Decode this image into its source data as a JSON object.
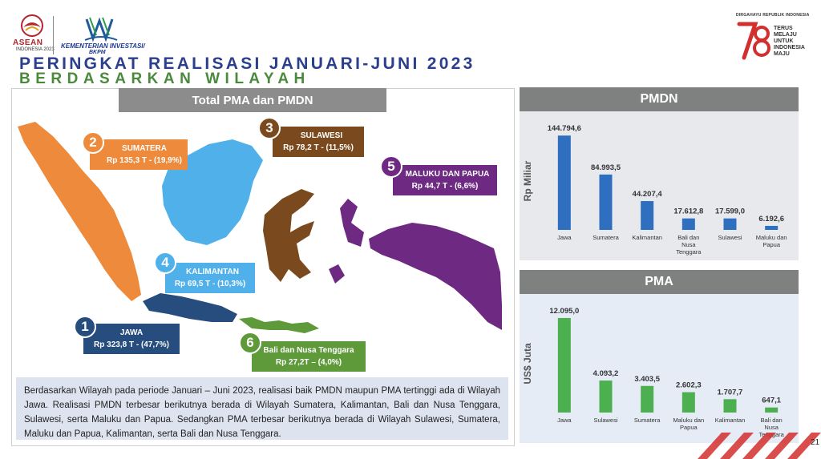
{
  "header": {
    "asean_label": "ASEAN",
    "asean_sub": "INDONESIA 2023",
    "ministry_line1": "KEMENTERIAN INVESTASI/",
    "ministry_line2": "BKPM",
    "title_line1": "PERINGKAT REALISASI JANUARI-JUNI 2023",
    "title_line2": "BERDASARKAN WILAYAH",
    "anniversary_label": "DIRGAHAYU REPUBLIK INDONESIA",
    "anniversary_tagline": "TERUS MELAJU UNTUK INDONESIA MAJU"
  },
  "map_panel": {
    "title": "Total PMA dan PMDN",
    "regions": [
      {
        "rank": "1",
        "name": "JAWA",
        "value": "Rp 323,8 T - (47,7%)",
        "color": "#264d7e"
      },
      {
        "rank": "2",
        "name": "SUMATERA",
        "value": "Rp 135,3 T - (19,9%)",
        "color": "#ee8a3c"
      },
      {
        "rank": "3",
        "name": "SULAWESI",
        "value": "Rp 78,2 T - (11,5%)",
        "color": "#7a4a1e"
      },
      {
        "rank": "4",
        "name": "KALIMANTAN",
        "value": "Rp 69,5 T - (10,3%)",
        "color": "#4fb0ea"
      },
      {
        "rank": "5",
        "name": "MALUKU DAN PAPUA",
        "value": "Rp 44,7 T - (6,6%)",
        "color": "#6e2a82"
      },
      {
        "rank": "6",
        "name": "Bali dan Nusa Tenggara",
        "value": "Rp 27,2T – (4,0%)",
        "color": "#5e9a3a"
      }
    ],
    "description": "Berdasarkan Wilayah pada periode Januari – Juni 2023, realisasi baik PMDN maupun PMA tertinggi ada di Wilayah Jawa. Realisasi PMDN terbesar berikutnya berada di Wilayah Sumatera, Kalimantan, Bali dan Nusa Tenggara, Sulawesi, serta Maluku dan Papua. Sedangkan PMA terbesar berikutnya berada di Wilayah Sulawesi, Sumatera, Maluku dan Papua, Kalimantan, serta Bali dan Nusa Tenggara."
  },
  "chart_data": [
    {
      "type": "bar",
      "title": "PMDN",
      "ylabel": "Rp Miliar",
      "categories": [
        "Jawa",
        "Sumatera",
        "Kalimantan",
        "Bali dan Nusa Tenggara",
        "Sulawesi",
        "Maluku dan Papua"
      ],
      "values": [
        144794.6,
        84993.5,
        44207.4,
        17612.8,
        17599.0,
        6192.6
      ],
      "value_labels": [
        "144.794,6",
        "84.993,5",
        "44.207,4",
        "17.612,8",
        "17.599,0",
        "6.192,6"
      ],
      "color": "#2f6fc0",
      "ylim": [
        0,
        150000
      ]
    },
    {
      "type": "bar",
      "title": "PMA",
      "ylabel": "US$ Juta",
      "categories": [
        "Jawa",
        "Sulawesi",
        "Sumatera",
        "Maluku dan Papua",
        "Kalimantan",
        "Bali dan Nusa Tenggara"
      ],
      "values": [
        12095.0,
        4093.2,
        3403.5,
        2602.3,
        1707.7,
        647.1
      ],
      "value_labels": [
        "12.095,0",
        "4.093,2",
        "3.403,5",
        "2.602,3",
        "1.707,7",
        "647,1"
      ],
      "color": "#4caf50",
      "ylim": [
        0,
        12500
      ]
    }
  ],
  "page_number": "21"
}
